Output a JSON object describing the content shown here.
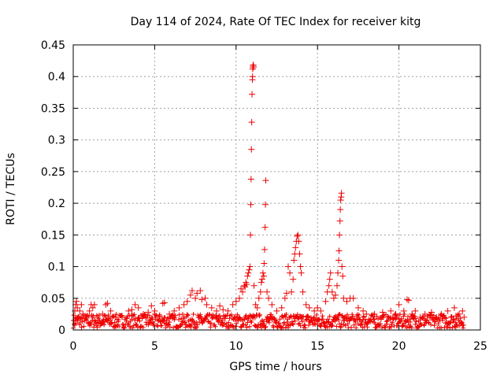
{
  "chart_data": {
    "type": "scatter",
    "title": "Day 114 of 2024, Rate Of TEC Index for receiver kitg",
    "xlabel": "GPS time / hours",
    "ylabel": "ROTI / TECUs",
    "xlim": [
      0,
      25
    ],
    "ylim": [
      0,
      0.45
    ],
    "xticks": [
      0,
      5,
      10,
      15,
      20,
      25
    ],
    "xtick_labels": [
      "0",
      "5",
      "10",
      "15",
      "20",
      "25"
    ],
    "yticks": [
      0,
      0.05,
      0.1,
      0.15,
      0.2,
      0.25,
      0.3,
      0.35,
      0.4,
      0.45
    ],
    "ytick_labels": [
      "0",
      "0.05",
      "0.1",
      "0.15",
      "0.2",
      "0.25",
      "0.3",
      "0.35",
      "0.4",
      "0.45"
    ],
    "grid": true,
    "marker": "+",
    "color": "#ee0000",
    "series": [
      {
        "name": "ROTI",
        "points": [
          [
            0.05,
            0.015
          ],
          [
            0.1,
            0.03
          ],
          [
            0.15,
            0.04
          ],
          [
            0.2,
            0.045
          ],
          [
            0.25,
            0.035
          ],
          [
            0.3,
            0.02
          ],
          [
            0.4,
            0.03
          ],
          [
            0.5,
            0.04
          ],
          [
            0.6,
            0.025
          ],
          [
            0.8,
            0.02
          ],
          [
            1.0,
            0.03
          ],
          [
            1.1,
            0.04
          ],
          [
            1.2,
            0.035
          ],
          [
            1.3,
            0.04
          ],
          [
            1.5,
            0.02
          ],
          [
            1.8,
            0.025
          ],
          [
            2.0,
            0.04
          ],
          [
            2.1,
            0.042
          ],
          [
            2.3,
            0.03
          ],
          [
            2.6,
            0.02
          ],
          [
            3.0,
            0.022
          ],
          [
            3.4,
            0.03
          ],
          [
            3.6,
            0.032
          ],
          [
            3.8,
            0.04
          ],
          [
            4.0,
            0.035
          ],
          [
            4.3,
            0.025
          ],
          [
            4.6,
            0.028
          ],
          [
            4.8,
            0.038
          ],
          [
            5.0,
            0.03
          ],
          [
            5.3,
            0.022
          ],
          [
            5.5,
            0.042
          ],
          [
            5.6,
            0.043
          ],
          [
            5.9,
            0.025
          ],
          [
            6.2,
            0.03
          ],
          [
            6.5,
            0.035
          ],
          [
            6.8,
            0.04
          ],
          [
            7.0,
            0.045
          ],
          [
            7.2,
            0.055
          ],
          [
            7.3,
            0.062
          ],
          [
            7.5,
            0.05
          ],
          [
            7.6,
            0.058
          ],
          [
            7.8,
            0.062
          ],
          [
            7.9,
            0.048
          ],
          [
            8.1,
            0.05
          ],
          [
            8.2,
            0.04
          ],
          [
            8.5,
            0.035
          ],
          [
            8.8,
            0.03
          ],
          [
            9.0,
            0.038
          ],
          [
            9.2,
            0.032
          ],
          [
            9.5,
            0.03
          ],
          [
            9.8,
            0.04
          ],
          [
            10.0,
            0.045
          ],
          [
            10.2,
            0.05
          ],
          [
            10.3,
            0.065
          ],
          [
            10.4,
            0.06
          ],
          [
            10.5,
            0.07
          ],
          [
            10.55,
            0.068
          ],
          [
            10.6,
            0.075
          ],
          [
            10.65,
            0.072
          ],
          [
            10.7,
            0.085
          ],
          [
            10.75,
            0.09
          ],
          [
            10.8,
            0.095
          ],
          [
            10.85,
            0.1
          ],
          [
            10.88,
            0.15
          ],
          [
            10.9,
            0.198
          ],
          [
            10.92,
            0.238
          ],
          [
            10.94,
            0.285
          ],
          [
            10.96,
            0.328
          ],
          [
            10.98,
            0.372
          ],
          [
            11.0,
            0.395
          ],
          [
            11.01,
            0.4
          ],
          [
            11.02,
            0.412
          ],
          [
            11.03,
            0.415
          ],
          [
            11.04,
            0.418
          ],
          [
            11.06,
            0.418
          ],
          [
            11.08,
            0.415
          ],
          [
            11.1,
            0.07
          ],
          [
            11.2,
            0.04
          ],
          [
            11.3,
            0.035
          ],
          [
            11.4,
            0.05
          ],
          [
            11.5,
            0.06
          ],
          [
            11.55,
            0.075
          ],
          [
            11.6,
            0.08
          ],
          [
            11.65,
            0.09
          ],
          [
            11.7,
            0.085
          ],
          [
            11.72,
            0.105
          ],
          [
            11.75,
            0.127
          ],
          [
            11.78,
            0.162
          ],
          [
            11.8,
            0.198
          ],
          [
            11.82,
            0.236
          ],
          [
            11.9,
            0.06
          ],
          [
            12.0,
            0.05
          ],
          [
            12.2,
            0.04
          ],
          [
            12.5,
            0.03
          ],
          [
            12.8,
            0.035
          ],
          [
            13.0,
            0.05
          ],
          [
            13.1,
            0.058
          ],
          [
            13.2,
            0.1
          ],
          [
            13.3,
            0.09
          ],
          [
            13.4,
            0.06
          ],
          [
            13.5,
            0.08
          ],
          [
            13.55,
            0.11
          ],
          [
            13.6,
            0.12
          ],
          [
            13.65,
            0.13
          ],
          [
            13.7,
            0.14
          ],
          [
            13.75,
            0.148
          ],
          [
            13.8,
            0.15
          ],
          [
            13.85,
            0.14
          ],
          [
            13.9,
            0.12
          ],
          [
            13.95,
            0.1
          ],
          [
            14.0,
            0.09
          ],
          [
            14.1,
            0.06
          ],
          [
            14.3,
            0.04
          ],
          [
            14.5,
            0.035
          ],
          [
            14.8,
            0.03
          ],
          [
            15.0,
            0.035
          ],
          [
            15.2,
            0.03
          ],
          [
            15.5,
            0.045
          ],
          [
            15.6,
            0.06
          ],
          [
            15.7,
            0.07
          ],
          [
            15.75,
            0.08
          ],
          [
            15.8,
            0.09
          ],
          [
            15.9,
            0.06
          ],
          [
            16.0,
            0.05
          ],
          [
            16.1,
            0.055
          ],
          [
            16.2,
            0.07
          ],
          [
            16.25,
            0.09
          ],
          [
            16.3,
            0.11
          ],
          [
            16.32,
            0.125
          ],
          [
            16.35,
            0.15
          ],
          [
            16.38,
            0.172
          ],
          [
            16.4,
            0.19
          ],
          [
            16.42,
            0.205
          ],
          [
            16.45,
            0.21
          ],
          [
            16.47,
            0.216
          ],
          [
            16.5,
            0.1
          ],
          [
            16.55,
            0.085
          ],
          [
            16.6,
            0.05
          ],
          [
            16.8,
            0.045
          ],
          [
            17.0,
            0.05
          ],
          [
            17.2,
            0.05
          ],
          [
            17.5,
            0.035
          ],
          [
            17.8,
            0.03
          ],
          [
            18.0,
            0.025
          ],
          [
            18.5,
            0.025
          ],
          [
            19.0,
            0.028
          ],
          [
            19.5,
            0.03
          ],
          [
            19.8,
            0.025
          ],
          [
            20.0,
            0.04
          ],
          [
            20.3,
            0.03
          ],
          [
            20.5,
            0.048
          ],
          [
            20.6,
            0.047
          ],
          [
            20.8,
            0.025
          ],
          [
            21.0,
            0.03
          ],
          [
            21.3,
            0.02
          ],
          [
            21.6,
            0.025
          ],
          [
            22.0,
            0.028
          ],
          [
            22.3,
            0.02
          ],
          [
            22.6,
            0.025
          ],
          [
            23.0,
            0.03
          ],
          [
            23.2,
            0.02
          ],
          [
            23.4,
            0.035
          ],
          [
            23.5,
            0.022
          ],
          [
            23.7,
            0.025
          ],
          [
            23.9,
            0.03
          ],
          [
            24.0,
            0.02
          ]
        ]
      }
    ]
  }
}
